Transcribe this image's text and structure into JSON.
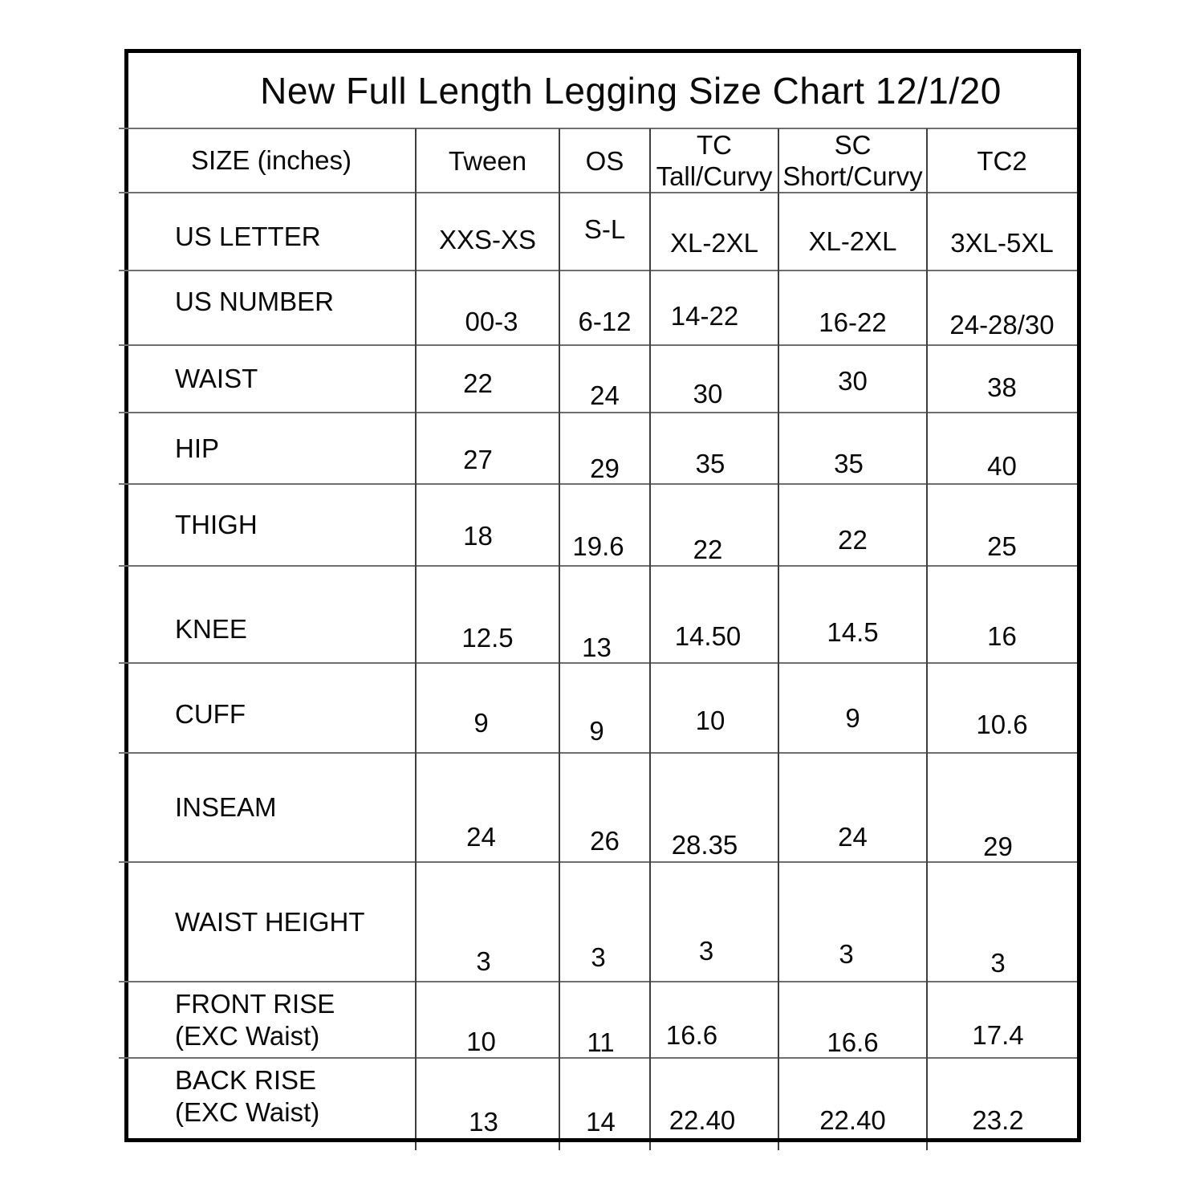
{
  "title": "New Full Length Legging Size Chart 12/1/20",
  "chart_data": {
    "type": "table",
    "title": "New Full Length Legging Size Chart 12/1/20",
    "corner_header": "SIZE (inches)",
    "column_headers": [
      [
        "Tween"
      ],
      [
        "OS"
      ],
      [
        "TC",
        "Tall/Curvy"
      ],
      [
        "SC",
        "Short/Curvy"
      ],
      [
        "TC2"
      ]
    ],
    "rows": [
      {
        "label": "US LETTER",
        "values": [
          "XXS-XS",
          "S-L",
          "XL-2XL",
          "XL-2XL",
          "3XL-5XL"
        ]
      },
      {
        "label": "US NUMBER",
        "values": [
          "00-3",
          "6-12",
          "14-22",
          "16-22",
          "24-28/30"
        ]
      },
      {
        "label": "WAIST",
        "values": [
          "22",
          "24",
          "30",
          "30",
          "38"
        ]
      },
      {
        "label": "HIP",
        "values": [
          "27",
          "29",
          "35",
          "35",
          "40"
        ]
      },
      {
        "label": "THIGH",
        "values": [
          "18",
          "19.6",
          "22",
          "22",
          "25"
        ]
      },
      {
        "label": "KNEE",
        "values": [
          "12.5",
          "13",
          "14.50",
          "14.5",
          "16"
        ]
      },
      {
        "label": "CUFF",
        "values": [
          "9",
          "9",
          "10",
          "9",
          "10.6"
        ]
      },
      {
        "label": "INSEAM",
        "values": [
          "24",
          "26",
          "28.35",
          "24",
          "29"
        ]
      },
      {
        "label": "WAIST HEIGHT",
        "values": [
          "3",
          "3",
          "3",
          "3",
          "3"
        ]
      },
      {
        "label": "FRONT RISE",
        "label2": "(EXC Waist)",
        "values": [
          "10",
          "11",
          "16.6",
          "16.6",
          "17.4"
        ]
      },
      {
        "label": "BACK RISE",
        "label2": "(EXC Waist)",
        "values": [
          "13",
          "14",
          "22.40",
          "22.40",
          "23.2"
        ]
      }
    ],
    "units": "inches",
    "grid": true,
    "colors": {
      "background": "#ffffff",
      "text": "#0a0a0a",
      "outer_border": "#000000",
      "horizontal_grid": "#6f6f6f",
      "vertical_grid": "#3f3f3f"
    }
  }
}
